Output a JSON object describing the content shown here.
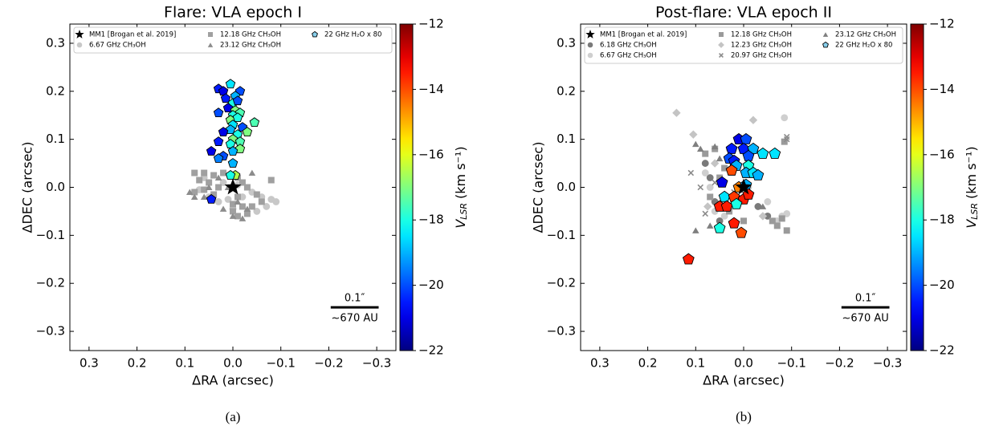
{
  "chart_data": [
    {
      "type": "scatter",
      "title": "Flare: VLA epoch I",
      "caption": "(a)",
      "x_label": "ΔRA (arcsec)",
      "y_label": "ΔDEC (arcsec)",
      "xlim": [
        0.34,
        -0.34
      ],
      "ylim": [
        -0.34,
        0.34
      ],
      "xticks": [
        0.3,
        0.2,
        0.1,
        {
          "value": 0,
          "label": "0.0"
        },
        {
          "value": -0.1,
          "label": "−0.1"
        },
        {
          "value": -0.2,
          "label": "−0.2"
        },
        {
          "value": -0.3,
          "label": "−0.3"
        }
      ],
      "yticks": [
        {
          "value": -0.3,
          "label": "−0.3"
        },
        {
          "value": -0.2,
          "label": "−0.2"
        },
        {
          "value": -0.1,
          "label": "−0.1"
        },
        {
          "value": 0,
          "label": "0.0"
        },
        0.1,
        0.2,
        0.3
      ],
      "colormap": "jet",
      "clim": [
        -22,
        -12
      ],
      "cticks": [
        {
          "value": -22,
          "label": "−22"
        },
        {
          "value": -20,
          "label": "−20"
        },
        {
          "value": -18,
          "label": "−18"
        },
        {
          "value": -16,
          "label": "−16"
        },
        {
          "value": -14,
          "label": "−14"
        },
        {
          "value": -12,
          "label": "−12"
        }
      ],
      "colorbar_label": {
        "symbol": "V",
        "subscript": "LSR",
        "unit": "(km s⁻¹)"
      },
      "legend_columns": 3,
      "legend_rows": 2,
      "scale_bar": {
        "length": 0.1,
        "label": "0.1″",
        "sublabel": "~670 AU"
      },
      "series": [
        {
          "name": "MM1 [Brogan et al. 2019]",
          "marker": "star",
          "color": "#000000",
          "x": [
            0
          ],
          "y": [
            0
          ]
        },
        {
          "name": "6.67 GHz CH₃OH",
          "marker": "circle",
          "color": "#c8c8c8",
          "x": [
            0.07,
            0.05,
            0.03,
            0.01,
            -0.02,
            -0.04,
            -0.06,
            -0.08,
            -0.09,
            -0.07,
            -0.05,
            0.0,
            0.06,
            0.02,
            -0.01
          ],
          "y": [
            -0.005,
            -0.02,
            -0.03,
            -0.025,
            -0.02,
            -0.01,
            -0.02,
            -0.025,
            -0.03,
            -0.04,
            -0.05,
            -0.045,
            0.02,
            0.01,
            0.005
          ]
        },
        {
          "name": "12.18 GHz CH₃OH",
          "marker": "square",
          "color": "#a0a0a0",
          "x": [
            0.08,
            0.06,
            0.04,
            0.02,
            0.07,
            0.05,
            0.03,
            0.06,
            0.08,
            0.04,
            -0.01,
            -0.02,
            -0.03,
            -0.01,
            0.0,
            -0.02,
            -0.04,
            -0.06,
            -0.05,
            -0.08,
            0.0,
            -0.03,
            -0.01
          ],
          "y": [
            0.03,
            0.03,
            0.025,
            0.03,
            0.015,
            0.01,
            0.0,
            -0.005,
            -0.01,
            -0.015,
            0.02,
            0.01,
            0.0,
            -0.02,
            -0.035,
            -0.04,
            -0.04,
            -0.03,
            -0.015,
            0.015,
            -0.05,
            -0.055,
            -0.06
          ]
        },
        {
          "name": "23.12 GHz CH₃OH",
          "marker": "triangle",
          "color": "#8c8c8c",
          "x": [
            0.09,
            0.08,
            0.05,
            0.03,
            0.01,
            -0.01,
            0.0,
            -0.02,
            -0.03,
            0.02,
            0.06,
            -0.04
          ],
          "y": [
            -0.01,
            -0.02,
            0.0,
            0.02,
            0.0,
            -0.03,
            -0.06,
            -0.065,
            -0.045,
            -0.045,
            -0.02,
            0.03
          ]
        },
        {
          "name": "22 GHz H₂O x 80",
          "marker": "pentagon",
          "color": "#87ceeb",
          "x": [
            0.03,
            0.02,
            0.005,
            -0.015,
            -0.005,
            0.015,
            0.0,
            -0.01,
            0.01,
            -0.005,
            -0.015,
            0.0,
            0.03,
            0.005,
            -0.01,
            -0.045,
            0.0,
            -0.02,
            0.005,
            0.02,
            -0.01,
            -0.03,
            0.0,
            -0.015,
            0.005,
            0.03,
            -0.015,
            0.0,
            0.045,
            0.02,
            0.03,
            0.0,
            -0.005,
            0.005,
            0.045
          ],
          "y": [
            0.205,
            0.2,
            0.215,
            0.2,
            0.19,
            0.185,
            0.175,
            0.18,
            0.165,
            0.16,
            0.155,
            0.15,
            0.155,
            0.14,
            0.145,
            0.135,
            0.13,
            0.125,
            0.12,
            0.115,
            0.11,
            0.115,
            0.1,
            0.095,
            0.09,
            0.095,
            0.08,
            0.075,
            0.075,
            0.065,
            0.06,
            0.05,
            0.025,
            0.025,
            -0.025
          ],
          "velocities": [
            -20.5,
            -21,
            -18.5,
            -20,
            -19,
            -20.5,
            -18,
            -20,
            -21,
            -17,
            -17.5,
            -18,
            -20,
            -17,
            -18,
            -17.5,
            -18.5,
            -20,
            -19,
            -21,
            -18,
            -17,
            -17,
            -17.5,
            -18,
            -20.5,
            -17,
            -19,
            -21,
            -20,
            -19.5,
            -19,
            -16.5,
            -18,
            -20.5
          ]
        }
      ]
    },
    {
      "type": "scatter",
      "title": "Post-flare: VLA epoch II",
      "caption": "(b)",
      "x_label": "ΔRA (arcsec)",
      "y_label": "ΔDEC (arcsec)",
      "xlim": [
        0.34,
        -0.34
      ],
      "ylim": [
        -0.34,
        0.34
      ],
      "xticks": [
        0.3,
        0.2,
        0.1,
        {
          "value": 0,
          "label": "0.0"
        },
        {
          "value": -0.1,
          "label": "−0.1"
        },
        {
          "value": -0.2,
          "label": "−0.2"
        },
        {
          "value": -0.3,
          "label": "−0.3"
        }
      ],
      "yticks": [
        {
          "value": -0.3,
          "label": "−0.3"
        },
        {
          "value": -0.2,
          "label": "−0.2"
        },
        {
          "value": -0.1,
          "label": "−0.1"
        },
        {
          "value": 0,
          "label": "0.0"
        },
        0.1,
        0.2,
        0.3
      ],
      "colormap": "jet",
      "clim": [
        -22,
        -12
      ],
      "cticks": [
        {
          "value": -22,
          "label": "−22"
        },
        {
          "value": -20,
          "label": "−20"
        },
        {
          "value": -18,
          "label": "−18"
        },
        {
          "value": -16,
          "label": "−16"
        },
        {
          "value": -14,
          "label": "−14"
        },
        {
          "value": -12,
          "label": "−12"
        }
      ],
      "colorbar_label": {
        "symbol": "V",
        "subscript": "LSR",
        "unit": "(km s⁻¹)"
      },
      "legend_columns": 3,
      "legend_rows": 3,
      "scale_bar": {
        "length": 0.1,
        "label": "0.1″",
        "sublabel": "~670 AU"
      },
      "series": [
        {
          "name": "MM1 [Brogan et al. 2019]",
          "marker": "star",
          "color": "#000000",
          "x": [
            0
          ],
          "y": [
            0
          ]
        },
        {
          "name": "6.18 GHz CH₃OH",
          "marker": "circle",
          "color": "#7a7a7a",
          "x": [
            0.08,
            0.07,
            0.06,
            0.05,
            -0.03,
            -0.05,
            0.03
          ],
          "y": [
            0.05,
            0.02,
            -0.03,
            -0.07,
            -0.04,
            -0.06,
            0.06
          ]
        },
        {
          "name": "6.67 GHz CH₃OH",
          "marker": "circle",
          "color": "#cfcfcf",
          "x": [
            0.08,
            0.07,
            0.06,
            0.04,
            -0.01,
            -0.05,
            -0.08,
            -0.09,
            0.03,
            -0.085,
            -0.07
          ],
          "y": [
            0.03,
            0.0,
            -0.05,
            -0.06,
            0.0,
            -0.03,
            -0.06,
            -0.055,
            0.08,
            0.145,
            -0.07
          ]
        },
        {
          "name": "12.18 GHz CH₃OH",
          "marker": "square",
          "color": "#9a9a9a",
          "x": [
            0.08,
            0.06,
            0.05,
            0.07,
            0.03,
            0.0,
            -0.06,
            -0.07,
            -0.09,
            -0.08,
            -0.085,
            0.04
          ],
          "y": [
            0.07,
            0.08,
            0.02,
            -0.02,
            -0.05,
            -0.07,
            -0.07,
            -0.08,
            -0.09,
            -0.065,
            0.095,
            0.04
          ]
        },
        {
          "name": "12.23 GHz CH₃OH",
          "marker": "diamond",
          "color": "#c4c4c4",
          "x": [
            0.14,
            0.075,
            0.06,
            0.0,
            -0.02,
            0.105,
            -0.04
          ],
          "y": [
            0.155,
            -0.04,
            0.05,
            -0.02,
            0.14,
            0.11,
            -0.06
          ]
        },
        {
          "name": "20.97 GHz CH₃OH",
          "marker": "x",
          "color": "#8a8a8a",
          "x": [
            0.11,
            0.09,
            0.08,
            0.06,
            -0.09,
            -0.09,
            0.02
          ],
          "y": [
            0.03,
            0.0,
            -0.055,
            0.01,
            0.105,
            0.1,
            -0.01
          ]
        },
        {
          "name": "23.12 GHz CH₃OH",
          "marker": "triangle",
          "color": "#7f7f7f",
          "x": [
            0.1,
            0.09,
            0.06,
            0.1,
            0.07,
            0.02,
            0.05,
            -0.04
          ],
          "y": [
            0.09,
            0.08,
            0.085,
            -0.09,
            -0.08,
            0.045,
            0.06,
            -0.04
          ]
        },
        {
          "name": "22 GHz H₂O x 80",
          "marker": "pentagon",
          "color": "#87ceeb",
          "x": [
            0.01,
            -0.005,
            0.025,
            0.0,
            -0.02,
            0.03,
            0.02,
            -0.01,
            -0.04,
            -0.065,
            0.015,
            -0.01,
            0.025,
            -0.005,
            -0.02,
            -0.03,
            0.045,
            0.01,
            -0.005,
            0.04,
            0.02,
            0.0,
            -0.01,
            0.05,
            0.035,
            0.015,
            0.02,
            0.05,
            0.005,
            0.115
          ],
          "y": [
            0.1,
            0.1,
            0.08,
            0.08,
            0.08,
            0.06,
            0.055,
            0.065,
            0.07,
            0.07,
            0.045,
            0.045,
            0.035,
            0.03,
            0.03,
            0.025,
            0.01,
            0.0,
            0.005,
            -0.02,
            -0.02,
            -0.025,
            -0.015,
            -0.04,
            -0.04,
            -0.035,
            -0.075,
            -0.085,
            -0.095,
            -0.15
          ],
          "velocities": [
            -21,
            -20,
            -20.5,
            -20.5,
            -19,
            -20,
            -20.5,
            -20,
            -18.5,
            -18.5,
            -19,
            -18,
            -14,
            -19,
            -18.5,
            -19,
            -21,
            -14.5,
            -19,
            -18.5,
            -13.8,
            -13.5,
            -13.5,
            -13.5,
            -13.5,
            -18,
            -13.5,
            -18,
            -14,
            -13.5
          ]
        }
      ]
    }
  ]
}
